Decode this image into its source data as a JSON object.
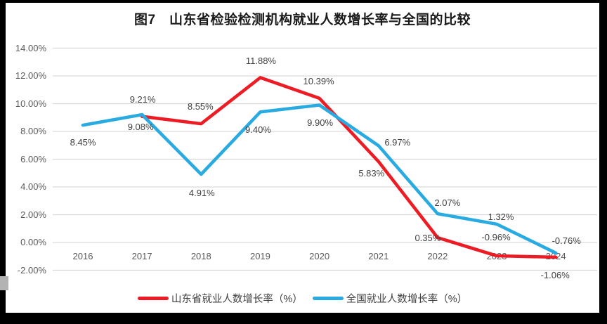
{
  "title": "图7　山东省检验检测机构就业人数增长率与全国的比较",
  "chart_data": {
    "type": "line",
    "title": "图7　山东省检验检测机构就业人数增长率与全国的比较",
    "categories": [
      "2016",
      "2017",
      "2018",
      "2019",
      "2020",
      "2021",
      "2022",
      "2023",
      "2024"
    ],
    "y_axis": {
      "min": -2,
      "max": 14,
      "step": 2,
      "tick_labels": [
        "14.00%",
        "12.00%",
        "10.00%",
        "8.00%",
        "6.00%",
        "4.00%",
        "2.00%",
        "0.00%",
        "-2.00%"
      ]
    },
    "grid": true,
    "legend_position": "bottom",
    "colors": {
      "gridline": "#d9d9d9",
      "axis_text": "#595959",
      "data_label_text": "#404040"
    },
    "series": [
      {
        "name": "山东省就业人数增长率（%）",
        "id": "shandong",
        "color": "#ed1c24",
        "values": [
          null,
          9.08,
          8.55,
          11.88,
          10.39,
          5.83,
          0.35,
          -0.96,
          -1.06
        ],
        "point_labels": [
          null,
          "9.08%",
          "8.55%",
          "11.88%",
          "10.39%",
          "5.83%",
          "0.35%",
          "-0.96%",
          "-1.06%"
        ],
        "label_offsets": [
          null,
          [
            -2,
            15
          ],
          [
            -1,
            -24
          ],
          [
            1,
            -23
          ],
          [
            -1,
            -24
          ],
          [
            -10,
            17
          ],
          [
            -14,
            1
          ],
          [
            -1,
            -26
          ],
          [
            -1,
            26
          ]
        ]
      },
      {
        "name": "全国就业人数增长率（%）",
        "id": "national",
        "color": "#29abe2",
        "values": [
          8.45,
          9.21,
          4.91,
          9.4,
          9.9,
          6.97,
          2.07,
          1.32,
          -0.76
        ],
        "point_labels": [
          "8.45%",
          "9.21%",
          "4.91%",
          "9.40%",
          "9.90%",
          "6.97%",
          "2.07%",
          "1.32%",
          "-0.76%"
        ],
        "label_offsets": [
          [
            0,
            25
          ],
          [
            1,
            -21
          ],
          [
            1,
            27
          ],
          [
            -3,
            26
          ],
          [
            1,
            26
          ],
          [
            27,
            -4
          ],
          [
            14,
            -15
          ],
          [
            6,
            -10
          ],
          [
            15,
            -17
          ]
        ]
      }
    ]
  }
}
